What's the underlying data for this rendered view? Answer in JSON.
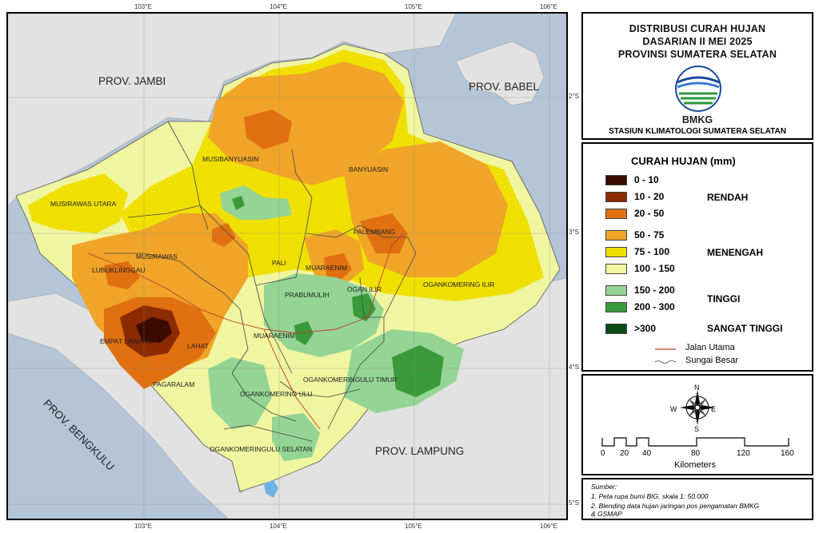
{
  "map": {
    "longitude_labels": [
      "103°E",
      "104°E",
      "105°E",
      "106°E"
    ],
    "latitude_labels": [
      "2°S",
      "3°S",
      "4°S",
      "5°S"
    ],
    "provinces": {
      "jambi": "PROV. JAMBI",
      "babel": "PROV. BABEL",
      "bengkulu": "PROV. BENGKULU",
      "lampung": "PROV. LAMPUNG"
    },
    "regencies": {
      "musi_banyuasin": "MUSIBANYUASIN",
      "banyuasin": "BANYUASIN",
      "musi_rawas_utara": "MUSIRAWAS UTARA",
      "palembang": "PALEMBANG",
      "musi_rawas": "MUSIRAWAS",
      "lubuklinggau": "LUBUKLINGGAU",
      "pali": "PALI",
      "muara_enim_city": "MUARAENIM",
      "ogan_ilir": "OGAN ILIR",
      "prabumulih": "PRABUMULIH",
      "ogan_komering_ilir": "OGANKOMERING ILIR",
      "empat_lawang": "EMPAT LAWANG",
      "lahat": "LAHAT",
      "muara_enim": "MUARAENIM",
      "oku_timur": "OGANKOMERINGULU TIMUR",
      "pagaralam": "PAGARALAM",
      "oku": "OGANKOMERING ULU",
      "oku_selatan": "OGANKOMERINGULU SELATAN"
    }
  },
  "title": {
    "line1": "DISTRIBUSI CURAH HUJAN",
    "line2": "DASARIAN II MEI 2025",
    "line3": "PROVINSI SUMATERA SELATAN",
    "logo_text": "BMKG",
    "station": "STASIUN KLIMATOLOGI SUMATERA SELATAN"
  },
  "legend": {
    "title": "CURAH HUJAN (mm)",
    "items": [
      {
        "range": "0 - 10",
        "color": "#3b0a00"
      },
      {
        "range": "10 - 20",
        "color": "#8c2a00"
      },
      {
        "range": "20 - 50",
        "color": "#e07010"
      },
      {
        "range": "50 - 75",
        "color": "#f0a428"
      },
      {
        "range": "75 - 100",
        "color": "#f0e000"
      },
      {
        "range": "100 - 150",
        "color": "#f0f5a0"
      },
      {
        "range": "150 - 200",
        "color": "#94d494"
      },
      {
        "range": "200 - 300",
        "color": "#3a9a3a"
      },
      {
        "range": ">300",
        "color": "#0a4a14"
      }
    ],
    "categories": {
      "low": "RENDAH",
      "medium": "MENENGAH",
      "high": "TINGGI",
      "very_high": "SANGAT TINGGI"
    },
    "road": "Jalan Utama",
    "river": "Sungai Besar"
  },
  "compass": {
    "n": "N",
    "s": "S",
    "e": "E",
    "w": "W"
  },
  "scale": {
    "ticks": [
      "0",
      "20",
      "40",
      "80",
      "120",
      "160"
    ],
    "unit": "Kilometers"
  },
  "source": {
    "heading": "Sumber:",
    "line1": "1. Peta rupa bumi BIG, skala 1: 50.000",
    "line2": "2. Blending data hujan jaringan pos pengamatan BMKG",
    "line3": "& GSMAP"
  }
}
